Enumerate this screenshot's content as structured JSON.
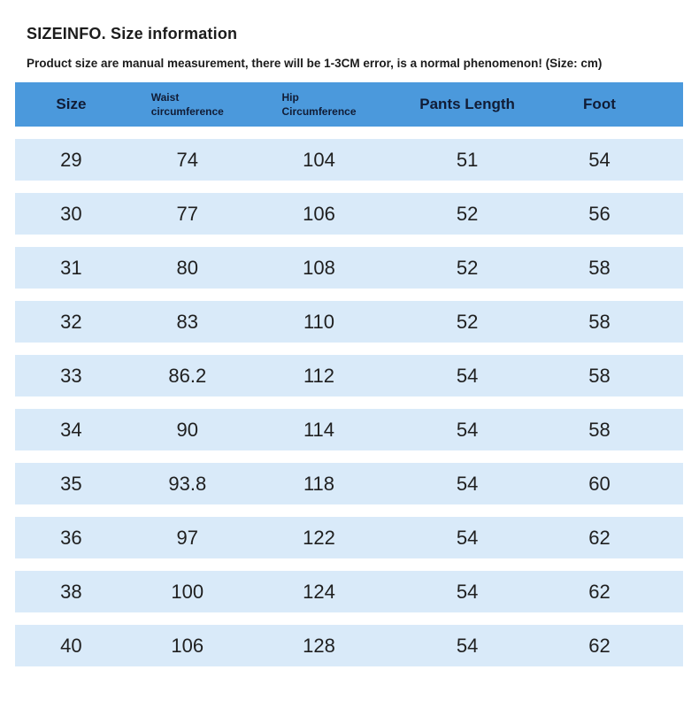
{
  "page": {
    "title": "SIZEINFO. Size information",
    "subtitle": "Product size are manual measurement, there will be 1-3CM error, is a normal phenomenon! (Size: cm)",
    "unit_note": "Size: cm"
  },
  "colors": {
    "header_bg": "#4b99dc",
    "header_text": "#111c35",
    "row_bg": "#d9eaf9",
    "body_text": "#1f1f1f",
    "page_bg": "#ffffff"
  },
  "table": {
    "headers": [
      {
        "label": "Size"
      },
      {
        "label": "Waist\ncircumference"
      },
      {
        "label": "Hip\nCircumference"
      },
      {
        "label": "Pants Length"
      },
      {
        "label": "Foot"
      }
    ],
    "rows": [
      [
        "29",
        "74",
        "104",
        "51",
        "54"
      ],
      [
        "30",
        "77",
        "106",
        "52",
        "56"
      ],
      [
        "31",
        "80",
        "108",
        "52",
        "58"
      ],
      [
        "32",
        "83",
        "110",
        "52",
        "58"
      ],
      [
        "33",
        "86.2",
        "112",
        "54",
        "58"
      ],
      [
        "34",
        "90",
        "114",
        "54",
        "58"
      ],
      [
        "35",
        "93.8",
        "118",
        "54",
        "60"
      ],
      [
        "36",
        "97",
        "122",
        "54",
        "62"
      ],
      [
        "38",
        "100",
        "124",
        "54",
        "62"
      ],
      [
        "40",
        "106",
        "128",
        "54",
        "62"
      ]
    ]
  }
}
